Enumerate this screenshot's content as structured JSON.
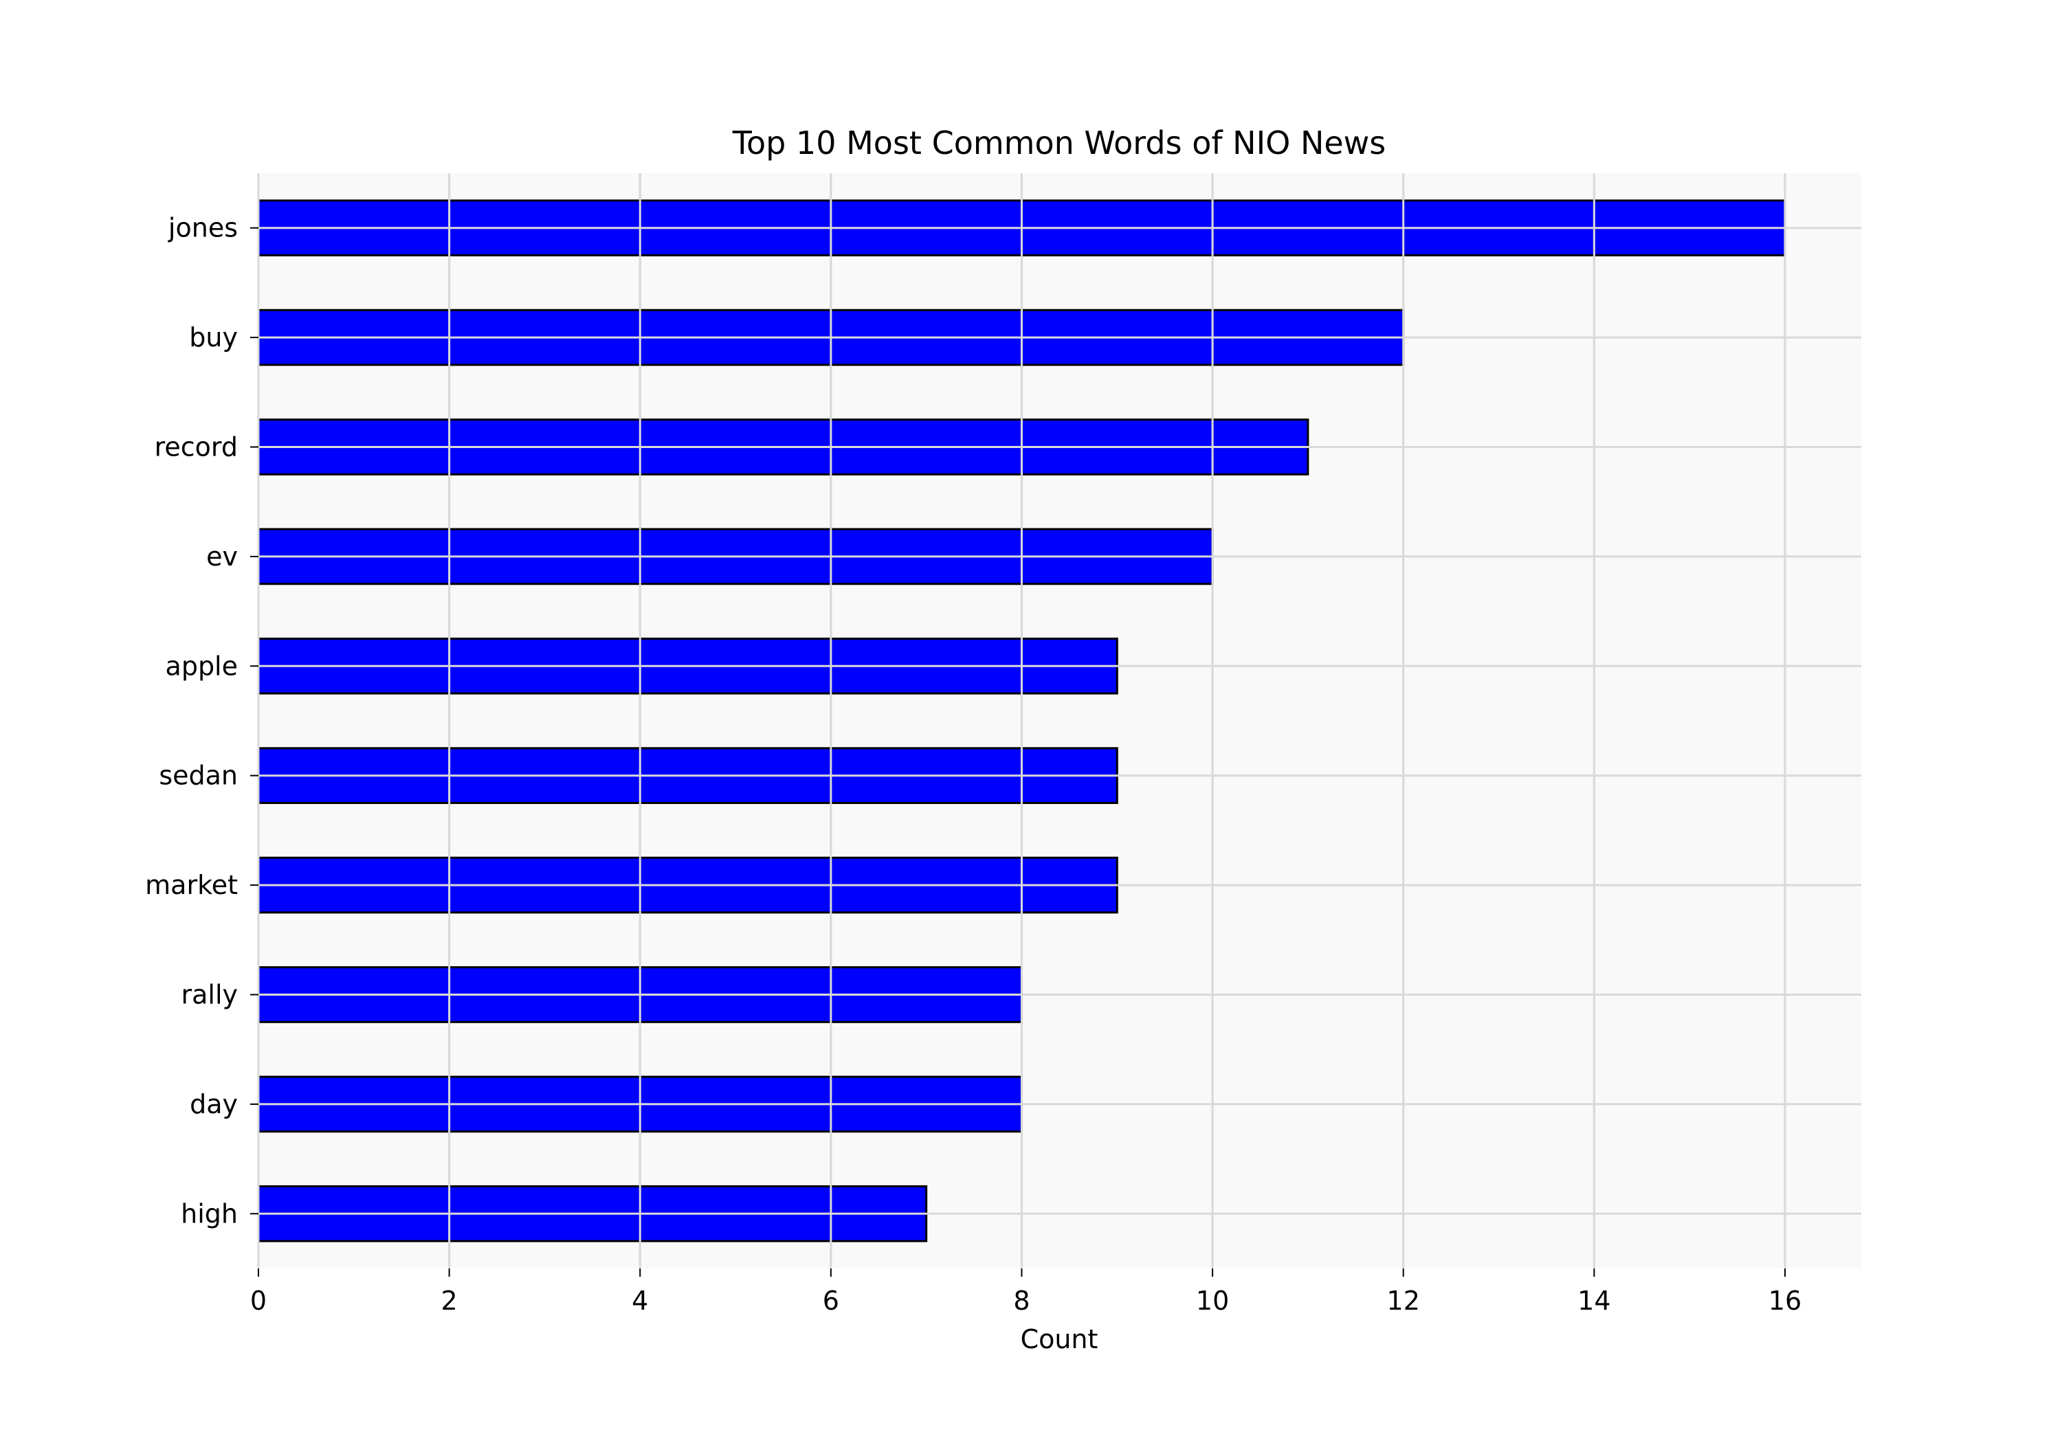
{
  "chart_data": {
    "type": "bar",
    "orientation": "horizontal",
    "title": "Top 10 Most Common Words of NIO News",
    "xlabel": "Count",
    "ylabel": "",
    "categories": [
      "jones",
      "buy",
      "record",
      "ev",
      "apple",
      "sedan",
      "market",
      "rally",
      "day",
      "high"
    ],
    "values": [
      16,
      12,
      11,
      10,
      9,
      9,
      9,
      8,
      8,
      7
    ],
    "xlim": [
      0,
      16.8
    ],
    "xticks": [
      0,
      2,
      4,
      6,
      8,
      10,
      12,
      14,
      16
    ],
    "grid": true,
    "legend": "none",
    "colors": {
      "bar_fill": "#0000ff",
      "bar_edge": "#000000",
      "plot_background": "#f9f9f9",
      "grid": "#d9d9d9"
    }
  }
}
